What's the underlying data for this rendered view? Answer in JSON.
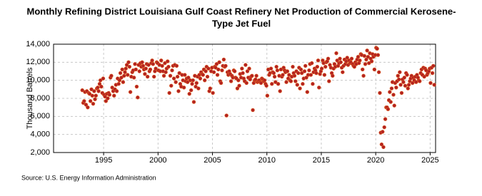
{
  "chart_data": {
    "type": "scatter",
    "title": [
      "Monthly Refining District Louisiana Gulf Coast Refinery Net Production of Commercial Kerosene-",
      "Type Jet Fuel"
    ],
    "ylabel": "Thousand Barrels",
    "source": "Source: U.S. Energy Information Administration",
    "xlim": [
      1990.4,
      2025.5
    ],
    "xticks": [
      1995,
      2000,
      2005,
      2010,
      2015,
      2020,
      2025
    ],
    "ylim": [
      2000,
      14000
    ],
    "yticks": [
      {
        "value": 2000,
        "label": "2,000"
      },
      {
        "value": 4000,
        "label": "4,000"
      },
      {
        "value": 6000,
        "label": "6,000"
      },
      {
        "value": 8000,
        "label": "8,000"
      },
      {
        "value": 10000,
        "label": "10,000"
      },
      {
        "value": 12000,
        "label": "12,000"
      },
      {
        "value": 14000,
        "label": "14,000"
      }
    ],
    "grid": true,
    "color": "#b22222",
    "x": [
      1993.04,
      1993.13,
      1993.21,
      1993.29,
      1993.38,
      1993.46,
      1993.54,
      1993.63,
      1993.71,
      1993.79,
      1993.88,
      1993.96,
      1994.04,
      1994.13,
      1994.21,
      1994.29,
      1994.38,
      1994.46,
      1994.54,
      1994.63,
      1994.71,
      1994.79,
      1994.88,
      1994.96,
      1995.04,
      1995.13,
      1995.21,
      1995.29,
      1995.38,
      1995.46,
      1995.54,
      1995.63,
      1995.71,
      1995.79,
      1995.88,
      1995.96,
      1996.04,
      1996.13,
      1996.21,
      1996.29,
      1996.38,
      1996.46,
      1996.54,
      1996.63,
      1996.71,
      1996.79,
      1996.88,
      1996.96,
      1997.04,
      1997.13,
      1997.21,
      1997.29,
      1997.38,
      1997.46,
      1997.54,
      1997.63,
      1997.71,
      1997.79,
      1997.88,
      1997.96,
      1998.04,
      1998.13,
      1998.21,
      1998.29,
      1998.38,
      1998.46,
      1998.54,
      1998.63,
      1998.71,
      1998.79,
      1998.88,
      1998.96,
      1999.04,
      1999.13,
      1999.21,
      1999.29,
      1999.38,
      1999.46,
      1999.54,
      1999.63,
      1999.71,
      1999.79,
      1999.88,
      1999.96,
      2000.04,
      2000.13,
      2000.21,
      2000.29,
      2000.38,
      2000.46,
      2000.54,
      2000.63,
      2000.71,
      2000.79,
      2000.88,
      2000.96,
      2001.04,
      2001.13,
      2001.21,
      2001.29,
      2001.38,
      2001.46,
      2001.54,
      2001.63,
      2001.71,
      2001.79,
      2001.88,
      2001.96,
      2002.04,
      2002.13,
      2002.21,
      2002.29,
      2002.38,
      2002.46,
      2002.54,
      2002.63,
      2002.71,
      2002.79,
      2002.88,
      2002.96,
      2003.04,
      2003.13,
      2003.21,
      2003.29,
      2003.38,
      2003.46,
      2003.54,
      2003.63,
      2003.71,
      2003.79,
      2003.88,
      2003.96,
      2004.04,
      2004.13,
      2004.21,
      2004.29,
      2004.38,
      2004.46,
      2004.54,
      2004.63,
      2004.71,
      2004.79,
      2004.88,
      2004.96,
      2005.04,
      2005.13,
      2005.21,
      2005.29,
      2005.38,
      2005.46,
      2005.54,
      2005.63,
      2005.71,
      2005.79,
      2005.88,
      2005.96,
      2006.04,
      2006.13,
      2006.21,
      2006.29,
      2006.38,
      2006.46,
      2006.54,
      2006.63,
      2006.71,
      2006.79,
      2006.88,
      2006.96,
      2007.04,
      2007.13,
      2007.21,
      2007.29,
      2007.38,
      2007.46,
      2007.54,
      2007.63,
      2007.71,
      2007.79,
      2007.88,
      2007.96,
      2008.04,
      2008.13,
      2008.21,
      2008.29,
      2008.38,
      2008.46,
      2008.54,
      2008.63,
      2008.71,
      2008.79,
      2008.88,
      2008.96,
      2009.04,
      2009.13,
      2009.21,
      2009.29,
      2009.38,
      2009.46,
      2009.54,
      2009.63,
      2009.71,
      2009.79,
      2009.88,
      2009.96,
      2010.04,
      2010.13,
      2010.21,
      2010.29,
      2010.38,
      2010.46,
      2010.54,
      2010.63,
      2010.71,
      2010.79,
      2010.88,
      2010.96,
      2011.04,
      2011.13,
      2011.21,
      2011.29,
      2011.38,
      2011.46,
      2011.54,
      2011.63,
      2011.71,
      2011.79,
      2011.88,
      2011.96,
      2012.04,
      2012.13,
      2012.21,
      2012.29,
      2012.38,
      2012.46,
      2012.54,
      2012.63,
      2012.71,
      2012.79,
      2012.88,
      2012.96,
      2013.04,
      2013.13,
      2013.21,
      2013.29,
      2013.38,
      2013.46,
      2013.54,
      2013.63,
      2013.71,
      2013.79,
      2013.88,
      2013.96,
      2014.04,
      2014.13,
      2014.21,
      2014.29,
      2014.38,
      2014.46,
      2014.54,
      2014.63,
      2014.71,
      2014.79,
      2014.88,
      2014.96,
      2015.04,
      2015.13,
      2015.21,
      2015.29,
      2015.38,
      2015.46,
      2015.54,
      2015.63,
      2015.71,
      2015.79,
      2015.88,
      2015.96,
      2016.04,
      2016.13,
      2016.21,
      2016.29,
      2016.38,
      2016.46,
      2016.54,
      2016.63,
      2016.71,
      2016.79,
      2016.88,
      2016.96,
      2017.04,
      2017.13,
      2017.21,
      2017.29,
      2017.38,
      2017.46,
      2017.54,
      2017.63,
      2017.71,
      2017.79,
      2017.88,
      2017.96,
      2018.04,
      2018.13,
      2018.21,
      2018.29,
      2018.38,
      2018.46,
      2018.54,
      2018.63,
      2018.71,
      2018.79,
      2018.88,
      2018.96,
      2019.04,
      2019.13,
      2019.21,
      2019.29,
      2019.38,
      2019.46,
      2019.54,
      2019.63,
      2019.71,
      2019.79,
      2019.88,
      2019.96,
      2020.04,
      2020.13,
      2020.21,
      2020.29,
      2020.38,
      2020.46,
      2020.54,
      2020.63,
      2020.71,
      2020.79,
      2020.88,
      2020.96,
      2021.04,
      2021.13,
      2021.21,
      2021.29,
      2021.38,
      2021.46,
      2021.54,
      2021.63,
      2021.71,
      2021.79,
      2021.88,
      2021.96,
      2022.04,
      2022.13,
      2022.21,
      2022.29,
      2022.38,
      2022.46,
      2022.54,
      2022.63,
      2022.71,
      2022.79,
      2022.88,
      2022.96,
      2023.04,
      2023.13,
      2023.21,
      2023.29,
      2023.38,
      2023.46,
      2023.54,
      2023.63,
      2023.71,
      2023.79,
      2023.88,
      2023.96,
      2024.04,
      2024.13,
      2024.21,
      2024.29,
      2024.38,
      2024.46,
      2024.54,
      2024.63,
      2024.71,
      2024.79,
      2024.88,
      2024.96,
      2025.04,
      2025.13,
      2025.21,
      2025.29,
      2025.38
    ],
    "values": [
      8900,
      7500,
      7700,
      8700,
      7300,
      8800,
      7000,
      8600,
      8500,
      7700,
      9000,
      8300,
      7400,
      8800,
      7900,
      8300,
      9100,
      9200,
      8800,
      9600,
      10000,
      9300,
      8600,
      10200,
      8400,
      8200,
      7700,
      8500,
      8000,
      8600,
      8400,
      10300,
      10500,
      9200,
      8800,
      8300,
      9000,
      9500,
      8800,
      10200,
      9600,
      10000,
      10800,
      10300,
      11200,
      9800,
      10500,
      10900,
      11300,
      11700,
      10600,
      12000,
      11500,
      8700,
      10400,
      10900,
      11100,
      10300,
      11800,
      11200,
      9300,
      8100,
      11700,
      11000,
      11900,
      11500,
      12000,
      11600,
      11200,
      10700,
      11300,
      11800,
      10400,
      11700,
      11000,
      11200,
      11900,
      12200,
      11800,
      10400,
      11000,
      11300,
      12000,
      11900,
      11100,
      11700,
      11000,
      12200,
      11600,
      11000,
      10500,
      11900,
      10900,
      11300,
      12100,
      11500,
      8600,
      10500,
      9400,
      11100,
      11600,
      10200,
      11700,
      9800,
      11600,
      10400,
      8800,
      10800,
      9600,
      9300,
      10600,
      10000,
      9200,
      10600,
      9900,
      10200,
      9800,
      10300,
      8500,
      10000,
      8900,
      9600,
      10000,
      7600,
      10500,
      9300,
      9700,
      10400,
      9100,
      10600,
      10200,
      10900,
      10700,
      10600,
      11200,
      10000,
      11000,
      11500,
      10400,
      11300,
      8800,
      9100,
      11000,
      11400,
      8600,
      10900,
      11500,
      11400,
      11800,
      10600,
      11200,
      12000,
      9900,
      9700,
      11100,
      11600,
      12300,
      11500,
      11600,
      6100,
      10900,
      10600,
      11000,
      10700,
      9900,
      10500,
      10300,
      11100,
      11000,
      10300,
      10200,
      9100,
      10000,
      9400,
      10700,
      10300,
      11300,
      10800,
      10200,
      9900,
      11700,
      9700,
      11000,
      10300,
      11300,
      10100,
      10400,
      10500,
      6700,
      9700,
      10000,
      10100,
      10500,
      9800,
      9900,
      10000,
      9800,
      9700,
      10200,
      10100,
      9900,
      10000,
      9600,
      9400,
      8300,
      11200,
      10600,
      10800,
      11300,
      9600,
      10900,
      10800,
      10400,
      9800,
      11500,
      11100,
      9600,
      10500,
      8800,
      11200,
      10400,
      10600,
      11400,
      11100,
      10900,
      9800,
      11000,
      10200,
      10600,
      10000,
      9900,
      10400,
      11500,
      10800,
      10500,
      9900,
      11000,
      9500,
      10800,
      11400,
      9100,
      11200,
      10800,
      9600,
      10200,
      11000,
      11600,
      10300,
      8700,
      10600,
      11100,
      11800,
      10600,
      11900,
      9600,
      10900,
      11300,
      11100,
      10800,
      11500,
      12200,
      9200,
      10700,
      11000,
      11300,
      12200,
      11900,
      10600,
      11500,
      12000,
      12100,
      12400,
      9900,
      11700,
      11400,
      10800,
      10500,
      11300,
      11800,
      11500,
      13000,
      12200,
      11600,
      11900,
      12400,
      12000,
      11400,
      10900,
      11600,
      12300,
      11800,
      12100,
      12500,
      11700,
      12200,
      11900,
      12000,
      12400,
      11800,
      11600,
      11500,
      12000,
      11800,
      12300,
      12600,
      11900,
      12200,
      12900,
      12800,
      11200,
      10500,
      12700,
      11800,
      12300,
      13300,
      12600,
      11900,
      13000,
      12400,
      12100,
      12900,
      12600,
      11200,
      12800,
      13600,
      13500,
      12800,
      10900,
      8600,
      4200,
      2900,
      4300,
      2600,
      4800,
      5700,
      7000,
      7000,
      6800,
      7800,
      8700,
      7600,
      9100,
      9800,
      8400,
      7200,
      9700,
      9200,
      9900,
      10500,
      10100,
      10900,
      9500,
      8600,
      10100,
      9800,
      10300,
      9400,
      10800,
      10600,
      9100,
      9500,
      9900,
      10200,
      10500,
      9700,
      10300,
      10000,
      10400,
      9800,
      10600,
      10300,
      10000,
      9900,
      10800,
      11200,
      10600,
      11400,
      10400,
      11300,
      11100,
      10600,
      10800,
      11000,
      11300,
      9700,
      11400,
      10800,
      11600,
      9500
    ]
  }
}
